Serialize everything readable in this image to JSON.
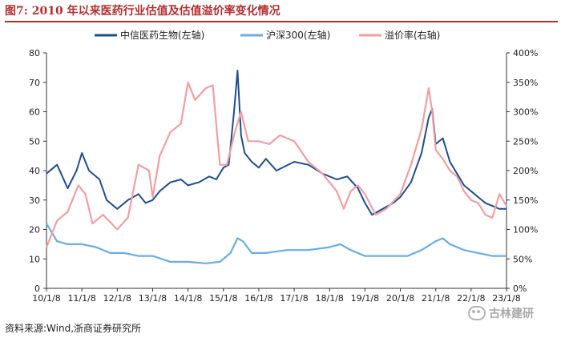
{
  "figure": {
    "label": "图7:",
    "title": "2010 年以来医药行业估值及估值溢价率变化情况",
    "source": "资料来源:Wind,浙商证券研究所",
    "watermark": "古林建研",
    "watermark_icon": "wechat-icon"
  },
  "chart_data": {
    "type": "line",
    "title": "2010 年以来医药行业估值及估值溢价率变化情况",
    "x": [
      "10/1/8",
      "11/1/8",
      "12/1/8",
      "13/1/8",
      "14/1/8",
      "15/1/8",
      "16/1/8",
      "17/1/8",
      "18/1/8",
      "19/1/8",
      "20/1/8",
      "21/1/8",
      "22/1/8",
      "23/1/8"
    ],
    "ylim": [
      0,
      80
    ],
    "yticks": [
      "0",
      "10",
      "20",
      "30",
      "40",
      "50",
      "60",
      "70",
      "80"
    ],
    "y2lim": [
      0,
      400
    ],
    "y2ticks": [
      "0%",
      "50%",
      "100%",
      "150%",
      "200%",
      "250%",
      "300%",
      "350%",
      "400%"
    ],
    "xlabel": "",
    "ylabel": "",
    "y2label": "",
    "legend_position": "top-center",
    "series": [
      {
        "name": "中信医药生物(左轴)",
        "axis": "left",
        "color": "#1f4e8c",
        "values": [
          [
            0,
            39
          ],
          [
            0.3,
            42
          ],
          [
            0.6,
            34
          ],
          [
            0.85,
            40
          ],
          [
            1.0,
            46
          ],
          [
            1.2,
            40
          ],
          [
            1.5,
            37
          ],
          [
            1.7,
            30
          ],
          [
            2.0,
            27
          ],
          [
            2.3,
            30
          ],
          [
            2.6,
            32
          ],
          [
            2.8,
            29
          ],
          [
            3.0,
            30
          ],
          [
            3.2,
            33
          ],
          [
            3.5,
            36
          ],
          [
            3.8,
            37
          ],
          [
            4.0,
            35
          ],
          [
            4.3,
            36
          ],
          [
            4.6,
            38
          ],
          [
            4.8,
            37
          ],
          [
            5.0,
            41
          ],
          [
            5.15,
            42
          ],
          [
            5.3,
            60
          ],
          [
            5.4,
            74
          ],
          [
            5.5,
            52
          ],
          [
            5.6,
            46
          ],
          [
            5.8,
            43
          ],
          [
            6.0,
            41
          ],
          [
            6.2,
            44
          ],
          [
            6.5,
            40
          ],
          [
            7.0,
            43
          ],
          [
            7.4,
            42
          ],
          [
            7.8,
            39
          ],
          [
            8.2,
            37
          ],
          [
            8.5,
            38
          ],
          [
            8.8,
            34
          ],
          [
            9.0,
            29
          ],
          [
            9.2,
            25
          ],
          [
            9.5,
            27
          ],
          [
            9.8,
            29
          ],
          [
            10.0,
            31
          ],
          [
            10.3,
            36
          ],
          [
            10.6,
            46
          ],
          [
            10.8,
            58
          ],
          [
            10.9,
            61
          ],
          [
            11.0,
            49
          ],
          [
            11.2,
            51
          ],
          [
            11.4,
            43
          ],
          [
            11.6,
            39
          ],
          [
            11.8,
            35
          ],
          [
            12.0,
            33
          ],
          [
            12.2,
            31
          ],
          [
            12.4,
            29
          ],
          [
            12.6,
            28
          ],
          [
            12.8,
            27
          ],
          [
            13.0,
            27
          ]
        ]
      },
      {
        "name": "沪深300(左轴)",
        "axis": "left",
        "color": "#6aade4",
        "values": [
          [
            0,
            22
          ],
          [
            0.3,
            16
          ],
          [
            0.6,
            15
          ],
          [
            1.0,
            15
          ],
          [
            1.4,
            14
          ],
          [
            1.8,
            12
          ],
          [
            2.2,
            12
          ],
          [
            2.6,
            11
          ],
          [
            3.0,
            11
          ],
          [
            3.5,
            9
          ],
          [
            4.0,
            9
          ],
          [
            4.5,
            8.5
          ],
          [
            4.9,
            9
          ],
          [
            5.2,
            12
          ],
          [
            5.4,
            17
          ],
          [
            5.55,
            16
          ],
          [
            5.8,
            12
          ],
          [
            6.2,
            12
          ],
          [
            6.8,
            13
          ],
          [
            7.4,
            13
          ],
          [
            8.0,
            14
          ],
          [
            8.3,
            15
          ],
          [
            8.6,
            13
          ],
          [
            9.0,
            11
          ],
          [
            9.4,
            11
          ],
          [
            9.8,
            11
          ],
          [
            10.2,
            11
          ],
          [
            10.6,
            13
          ],
          [
            11.0,
            16
          ],
          [
            11.2,
            17
          ],
          [
            11.4,
            15
          ],
          [
            11.8,
            13
          ],
          [
            12.2,
            12
          ],
          [
            12.6,
            11
          ],
          [
            13.0,
            11
          ]
        ]
      },
      {
        "name": "溢价率(右轴)",
        "axis": "right",
        "color": "#f19ea4",
        "values": [
          [
            0,
            70
          ],
          [
            0.3,
            115
          ],
          [
            0.6,
            130
          ],
          [
            0.9,
            175
          ],
          [
            1.1,
            160
          ],
          [
            1.3,
            110
          ],
          [
            1.6,
            125
          ],
          [
            2.0,
            100
          ],
          [
            2.3,
            120
          ],
          [
            2.6,
            210
          ],
          [
            2.9,
            200
          ],
          [
            3.0,
            155
          ],
          [
            3.2,
            225
          ],
          [
            3.5,
            265
          ],
          [
            3.8,
            280
          ],
          [
            4.0,
            350
          ],
          [
            4.2,
            320
          ],
          [
            4.5,
            340
          ],
          [
            4.7,
            345
          ],
          [
            4.9,
            210
          ],
          [
            5.1,
            210
          ],
          [
            5.3,
            260
          ],
          [
            5.5,
            300
          ],
          [
            5.7,
            250
          ],
          [
            6.0,
            250
          ],
          [
            6.3,
            245
          ],
          [
            6.6,
            260
          ],
          [
            7.0,
            250
          ],
          [
            7.4,
            215
          ],
          [
            7.8,
            195
          ],
          [
            8.2,
            165
          ],
          [
            8.4,
            135
          ],
          [
            8.6,
            165
          ],
          [
            8.8,
            175
          ],
          [
            9.0,
            160
          ],
          [
            9.3,
            125
          ],
          [
            9.6,
            135
          ],
          [
            10.0,
            160
          ],
          [
            10.3,
            210
          ],
          [
            10.6,
            270
          ],
          [
            10.8,
            340
          ],
          [
            10.9,
            300
          ],
          [
            11.0,
            235
          ],
          [
            11.2,
            220
          ],
          [
            11.4,
            200
          ],
          [
            11.6,
            190
          ],
          [
            11.8,
            165
          ],
          [
            12.0,
            150
          ],
          [
            12.2,
            145
          ],
          [
            12.4,
            125
          ],
          [
            12.6,
            120
          ],
          [
            12.8,
            160
          ],
          [
            13.0,
            140
          ]
        ]
      }
    ]
  }
}
